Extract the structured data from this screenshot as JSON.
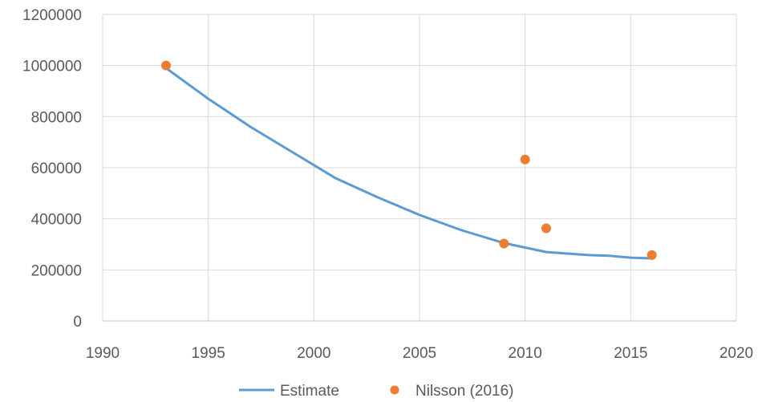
{
  "chart_data": {
    "type": "scatter",
    "title": "",
    "xlabel": "",
    "ylabel": "",
    "xlim": [
      1990,
      2020
    ],
    "ylim": [
      0,
      1200000
    ],
    "x_ticks": [
      1990,
      1995,
      2000,
      2005,
      2010,
      2015,
      2020
    ],
    "y_ticks": [
      0,
      200000,
      400000,
      600000,
      800000,
      1000000,
      1200000
    ],
    "x_tick_labels": [
      "1990",
      "1995",
      "2000",
      "2005",
      "2010",
      "2015",
      "2020"
    ],
    "y_tick_labels": [
      "0",
      "200000",
      "400000",
      "600000",
      "800000",
      "1000000",
      "1200000"
    ],
    "grid": true,
    "legend_position": "bottom",
    "series": [
      {
        "name": "Estimate",
        "kind": "line",
        "color": "#5b9bd5",
        "x": [
          1993,
          1995,
          1997,
          1999,
          2001,
          2003,
          2005,
          2007,
          2009,
          2011,
          2013,
          2014,
          2015,
          2016
        ],
        "y": [
          990000,
          870000,
          760000,
          660000,
          560000,
          485000,
          415000,
          355000,
          305000,
          270000,
          258000,
          255000,
          248000,
          245000
        ]
      },
      {
        "name": "Nilsson (2016)",
        "kind": "scatter",
        "color": "#ed7d31",
        "x": [
          1993,
          2009,
          2010,
          2011,
          2016
        ],
        "y": [
          1000000,
          303000,
          632000,
          363000,
          258000
        ]
      }
    ]
  }
}
